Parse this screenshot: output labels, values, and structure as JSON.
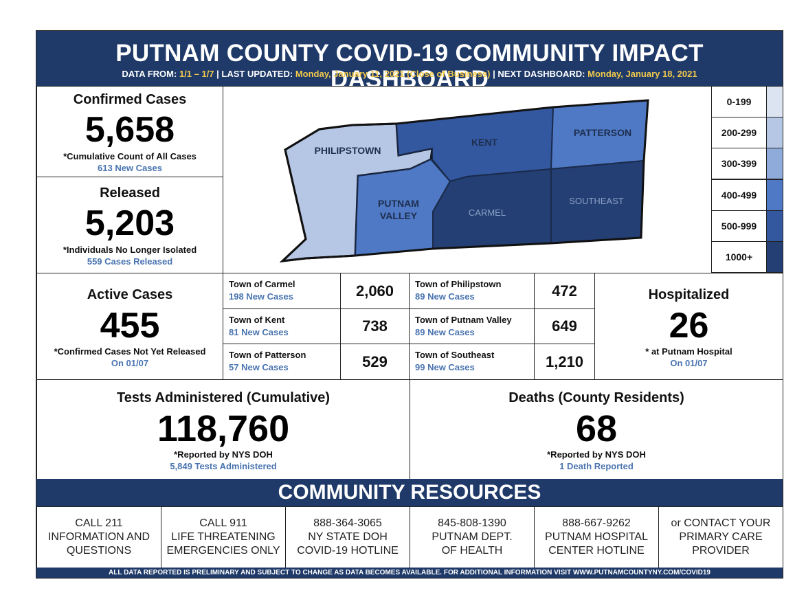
{
  "header": {
    "title": "PUTNAM COUNTY COVID-19 COMMUNITY IMPACT DASHBOARD",
    "data_from_label": "DATA FROM:",
    "data_from_value": "1/1 – 1/7",
    "last_updated_label": "| LAST UPDATED:",
    "last_updated_value": "Monday, January 11, 2021 (Close of Business)",
    "next_label": "| NEXT DASHBOARD:",
    "next_value": "Monday, January 18, 2021"
  },
  "confirmed": {
    "title": "Confirmed Cases",
    "value": "5,658",
    "note": "*Cumulative Count of All Cases",
    "sub": "613 New Cases"
  },
  "released": {
    "title": "Released",
    "value": "5,203",
    "note": "*Individuals No Longer Isolated",
    "sub": "559 Cases Released"
  },
  "map": {
    "towns": {
      "philipstown": "PHILIPSTOWN",
      "kent": "KENT",
      "patterson": "PATTERSON",
      "putnam_valley_1": "PUTNAM",
      "putnam_valley_2": "VALLEY",
      "carmel": "CARMEL",
      "southeast": "SOUTHEAST"
    },
    "colors": {
      "c0": "#dce4f2",
      "c1": "#b6c7e6",
      "c2": "#8eabd9",
      "c3": "#4f79c4",
      "c4": "#3358a0",
      "c5": "#243f73"
    }
  },
  "legend": [
    {
      "label": "0-199",
      "color": "#dce4f2"
    },
    {
      "label": "200-299",
      "color": "#b6c7e6"
    },
    {
      "label": "300-399",
      "color": "#8eabd9"
    },
    {
      "label": "400-499",
      "color": "#4f79c4"
    },
    {
      "label": "500-999",
      "color": "#3358a0"
    },
    {
      "label": "1000+",
      "color": "#243f73"
    }
  ],
  "active": {
    "title": "Active Cases",
    "value": "455",
    "note": "*Confirmed Cases Not Yet Released",
    "sub": "On 01/07"
  },
  "towns": [
    {
      "name": "Town of Carmel",
      "new": "198 New Cases",
      "value": "2,060"
    },
    {
      "name": "Town of Kent",
      "new": "81 New Cases",
      "value": "738"
    },
    {
      "name": "Town of Patterson",
      "new": "57 New Cases",
      "value": "529"
    },
    {
      "name": "Town of Philipstown",
      "new": "89 New Cases",
      "value": "472"
    },
    {
      "name": "Town of Putnam Valley",
      "new": "89 New Cases",
      "value": "649"
    },
    {
      "name": "Town of Southeast",
      "new": "99 New Cases",
      "value": "1,210"
    }
  ],
  "hospitalized": {
    "title": "Hospitalized",
    "value": "26",
    "note": "* at Putnam Hospital",
    "sub": "On 01/07"
  },
  "tests": {
    "title": "Tests Administered (Cumulative)",
    "value": "118,760",
    "note": "*Reported by NYS DOH",
    "sub": "5,849 Tests Administered"
  },
  "deaths": {
    "title": "Deaths (County Residents)",
    "value": "68",
    "note": "*Reported by NYS DOH",
    "sub": "1 Death Reported"
  },
  "resources": {
    "title": "COMMUNITY RESOURCES",
    "items": [
      {
        "line1": "CALL 211",
        "line2": "INFORMATION AND",
        "line3": "QUESTIONS"
      },
      {
        "line1": "CALL 911",
        "line2": "LIFE THREATENING",
        "line3": "EMERGENCIES ONLY"
      },
      {
        "line1": "888-364-3065",
        "line2": "NY STATE DOH",
        "line3": "COVID-19 HOTLINE"
      },
      {
        "line1": "845-808-1390",
        "line2": "PUTNAM DEPT.",
        "line3": "OF HEALTH"
      },
      {
        "line1": "888-667-9262",
        "line2": "PUTNAM HOSPITAL",
        "line3": "CENTER HOTLINE"
      },
      {
        "line1": "or CONTACT YOUR",
        "line2": "PRIMARY CARE",
        "line3": "PROVIDER"
      }
    ]
  },
  "footer": "ALL DATA REPORTED IS PRELIMINARY AND SUBJECT TO CHANGE AS DATA BECOMES AVAILABLE. FOR ADDITIONAL INFORMATION VISIT WWW.PUTNAMCOUNTYNY.COM/COVID19"
}
